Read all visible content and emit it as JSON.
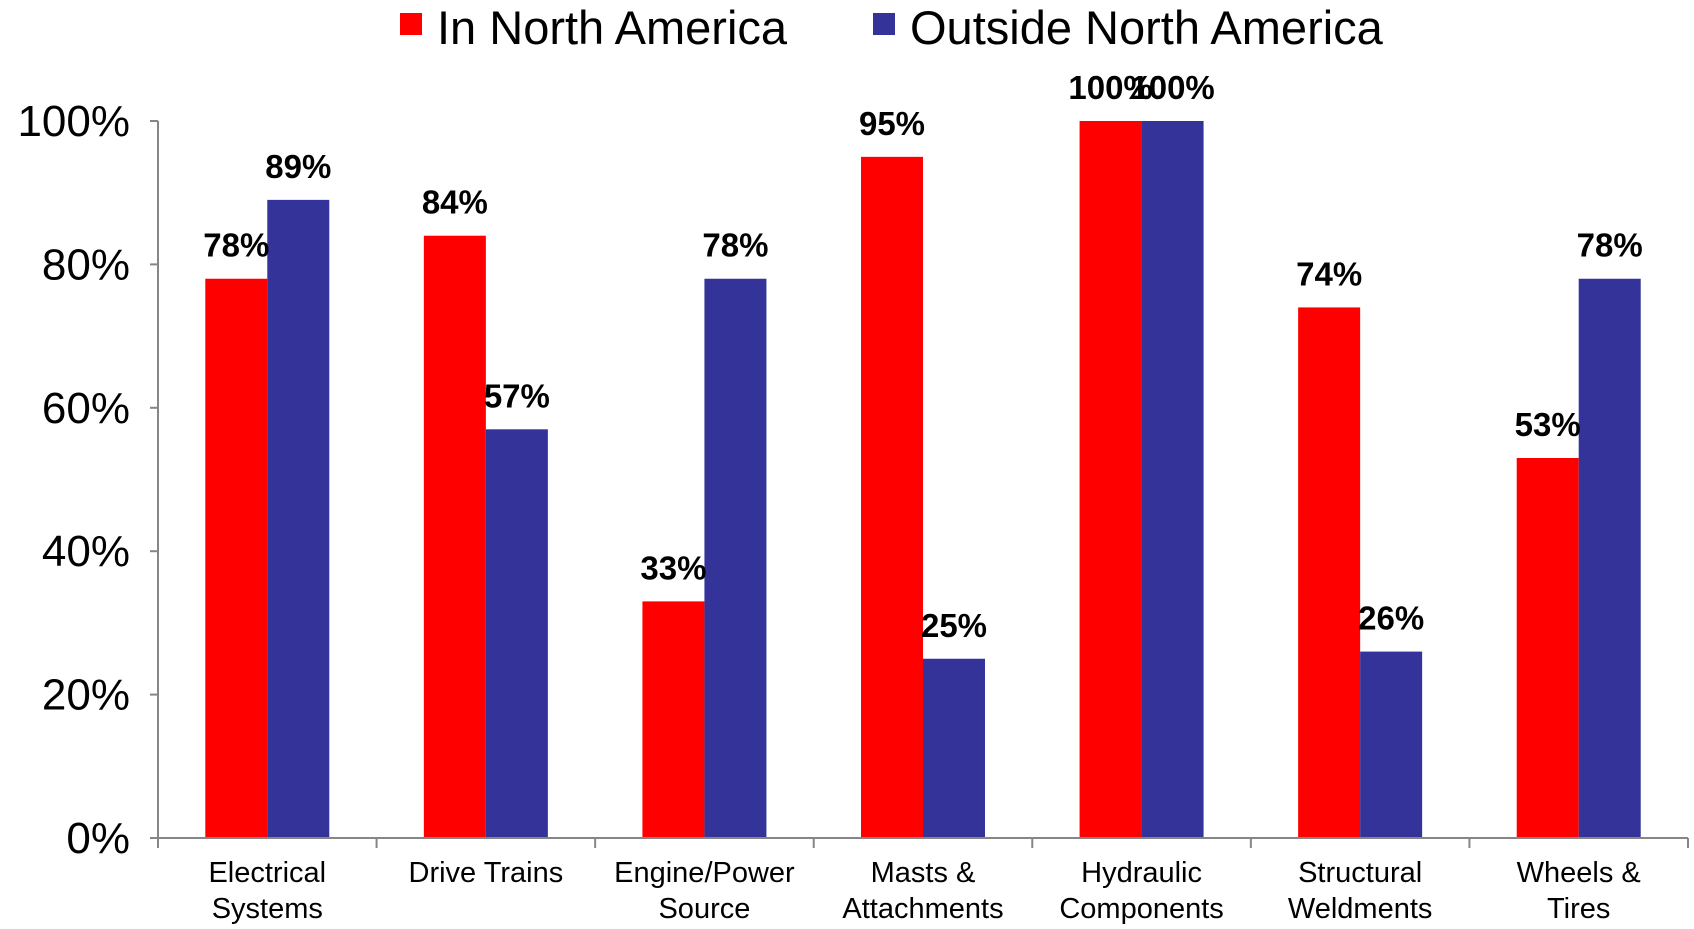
{
  "chart_data": {
    "type": "bar",
    "title": "",
    "xlabel": "",
    "ylabel": "",
    "ylim": [
      0,
      100
    ],
    "y_ticks": [
      0,
      20,
      40,
      60,
      80,
      100
    ],
    "y_tick_labels": [
      "0%",
      "20%",
      "40%",
      "60%",
      "80%",
      "100%"
    ],
    "grid": false,
    "legend_placement": "top-center",
    "categories": [
      [
        "Electrical",
        "Systems"
      ],
      [
        "Drive Trains"
      ],
      [
        "Engine/Power",
        "Source"
      ],
      [
        "Masts &",
        "Attachments"
      ],
      [
        "Hydraulic",
        "Components"
      ],
      [
        "Structural",
        "Weldments"
      ],
      [
        "Wheels &",
        "Tires"
      ]
    ],
    "series": [
      {
        "name": "In North America",
        "color": "#ff0000",
        "values": [
          78,
          84,
          33,
          95,
          100,
          74,
          53
        ],
        "labels": [
          "78%",
          "84%",
          "33%",
          "95%",
          "100%",
          "74%",
          "53%"
        ]
      },
      {
        "name": "Outside North America",
        "color": "#333399",
        "values": [
          89,
          57,
          78,
          25,
          100,
          26,
          78
        ],
        "labels": [
          "89%",
          "57%",
          "78%",
          "25%",
          "100%",
          "26%",
          "78%"
        ]
      }
    ]
  }
}
